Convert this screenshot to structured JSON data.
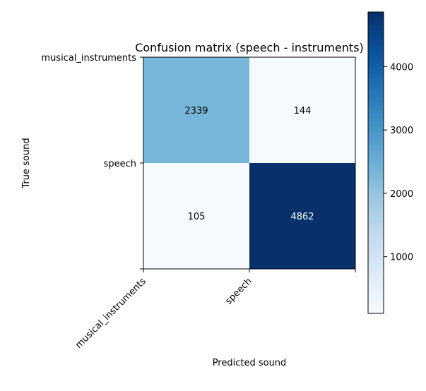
{
  "chart_data": {
    "type": "heatmap",
    "title": "Confusion matrix (speech - instruments)",
    "xlabel": "Predicted sound",
    "ylabel": "True sound",
    "x_categories": [
      "musical_instruments",
      "speech"
    ],
    "y_categories": [
      "musical_instruments",
      "speech"
    ],
    "matrix": [
      [
        2339,
        144
      ],
      [
        105,
        4862
      ]
    ],
    "colormap": "Blues",
    "color_range": [
      105,
      4862
    ],
    "colorbar_ticks": [
      1000,
      2000,
      3000,
      4000
    ],
    "grid": false
  }
}
